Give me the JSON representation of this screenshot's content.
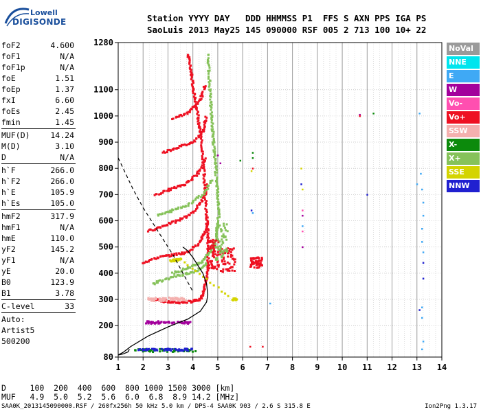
{
  "logo": {
    "line1": "Lowell",
    "line2": "DIGISONDE"
  },
  "header": {
    "line1": "Station YYYY DAY   DDD HHMMSS P1  FFS S AXN PPS IGA PS",
    "line2": "SaoLuis 2013 May25 145 090000 RSF 005 2 713 100 10+ 22"
  },
  "params": [
    {
      "group": [
        {
          "k": "foF2",
          "v": "4.600"
        },
        {
          "k": "foF1",
          "v": "N/A"
        },
        {
          "k": "foF1p",
          "v": "N/A"
        },
        {
          "k": "foE",
          "v": "1.51"
        },
        {
          "k": "foEp",
          "v": "1.37"
        },
        {
          "k": "fxI",
          "v": "6.60"
        },
        {
          "k": "foEs",
          "v": "2.45"
        },
        {
          "k": "fmin",
          "v": "1.45"
        }
      ]
    },
    {
      "group": [
        {
          "k": "MUF(D)",
          "v": "14.24"
        },
        {
          "k": "M(D)",
          "v": "3.10"
        },
        {
          "k": "D",
          "v": "N/A"
        }
      ]
    },
    {
      "group": [
        {
          "k": "h`F",
          "v": "266.0"
        },
        {
          "k": "h`F2",
          "v": "266.0"
        },
        {
          "k": "h`E",
          "v": "105.9"
        },
        {
          "k": "h`Es",
          "v": "105.0"
        }
      ]
    },
    {
      "group": [
        {
          "k": "hmF2",
          "v": "317.9"
        },
        {
          "k": "hmF1",
          "v": "N/A"
        },
        {
          "k": "hmE",
          "v": "110.0"
        },
        {
          "k": "yF2",
          "v": "145.2"
        },
        {
          "k": "yF1",
          "v": "N/A"
        },
        {
          "k": "yE",
          "v": "20.0"
        },
        {
          "k": "B0",
          "v": "123.9"
        },
        {
          "k": "B1",
          "v": "3.78"
        }
      ]
    },
    {
      "group": [
        {
          "k": "C-level",
          "v": "33"
        }
      ]
    },
    {
      "group": [
        {
          "k": "Auto:",
          "v": ""
        },
        {
          "k": "Artist5",
          "v": ""
        },
        {
          "k": "500200",
          "v": ""
        }
      ]
    }
  ],
  "legend": [
    {
      "label": "NoVal",
      "color": "#9a9a9a"
    },
    {
      "label": "NNE",
      "color": "#00e5ee"
    },
    {
      "label": "E",
      "color": "#3fa9f5"
    },
    {
      "label": "W",
      "color": "#a3009c"
    },
    {
      "label": "Vo-",
      "color": "#ff4fb0"
    },
    {
      "label": "Vo+",
      "color": "#ee1122"
    },
    {
      "label": "SSW",
      "color": "#f4b0ae"
    },
    {
      "label": "X-",
      "color": "#0c8a0c"
    },
    {
      "label": "X+",
      "color": "#86c25a"
    },
    {
      "label": "SSE",
      "color": "#d4d400"
    },
    {
      "label": "NNW",
      "color": "#2020d0"
    }
  ],
  "dmuf": {
    "line1": "D     100  200  400  600  800 1000 1500 3000 [km]",
    "line2": "MUF   4.9  5.0  5.2  5.6  6.0  6.8  8.9 14.2 [MHz]"
  },
  "footer": "SAA0K_2013145090000.RSF / 260fx256h 50 kHz 5.0 km / DPS-4 SAA0K 903 / 2.6 S 315.8 E",
  "version": "Ion2Png 1.3.17",
  "chart_data": {
    "type": "scatter",
    "xlim": [
      1,
      14
    ],
    "ylim": [
      80,
      1280
    ],
    "x_ticks": [
      1,
      2,
      3,
      4,
      5,
      6,
      7,
      8,
      9,
      10,
      11,
      12,
      13,
      14
    ],
    "y_ticks": [
      80,
      200,
      300,
      400,
      500,
      600,
      700,
      800,
      900,
      1000,
      1100,
      1280
    ],
    "x_minor_step": 0.25,
    "grid": true,
    "profile_curve": [
      [
        1.45,
        110
      ],
      [
        1.4,
        100
      ],
      [
        1.2,
        92
      ],
      [
        1.0,
        88
      ],
      [
        1.2,
        98
      ],
      [
        1.5,
        120
      ],
      [
        2.2,
        160
      ],
      [
        3.0,
        195
      ],
      [
        3.8,
        225
      ],
      [
        4.3,
        255
      ],
      [
        4.55,
        290
      ],
      [
        4.6,
        318
      ],
      [
        4.55,
        360
      ],
      [
        4.4,
        400
      ],
      [
        4.2,
        430
      ],
      [
        4.0,
        460
      ],
      [
        3.8,
        485
      ],
      [
        3.6,
        500
      ]
    ],
    "dashed_curve": [
      [
        1,
        840
      ],
      [
        1.3,
        780
      ],
      [
        1.6,
        720
      ],
      [
        2.0,
        650
      ],
      [
        2.4,
        590
      ],
      [
        2.8,
        530
      ],
      [
        3.2,
        470
      ],
      [
        3.6,
        400
      ],
      [
        4.0,
        330
      ]
    ],
    "traces": [
      {
        "mode": "Vo+",
        "color": "#ee1122",
        "points": [
          [
            2.5,
            300
          ],
          [
            3.0,
            290
          ],
          [
            3.5,
            288
          ],
          [
            4.0,
            292
          ],
          [
            4.3,
            300
          ],
          [
            4.45,
            330
          ],
          [
            4.55,
            380
          ],
          [
            4.6,
            440
          ],
          [
            4.62,
            500
          ],
          [
            4.6,
            560
          ],
          [
            4.55,
            620
          ],
          [
            4.5,
            700
          ],
          [
            4.45,
            780
          ],
          [
            4.4,
            860
          ],
          [
            4.3,
            940
          ],
          [
            4.2,
            1000
          ],
          [
            4.1,
            1060
          ],
          [
            4.0,
            1120
          ],
          [
            3.9,
            1180
          ],
          [
            3.8,
            1240
          ]
        ]
      },
      {
        "mode": "Vo+",
        "color": "#ee1122",
        "points": [
          [
            2.0,
            440
          ],
          [
            2.6,
            460
          ],
          [
            3.2,
            470
          ],
          [
            3.8,
            480
          ],
          [
            4.3,
            520
          ],
          [
            4.5,
            560
          ],
          [
            4.6,
            600
          ]
        ]
      },
      {
        "mode": "Vo+",
        "color": "#ee1122",
        "points": [
          [
            2.2,
            560
          ],
          [
            2.8,
            580
          ],
          [
            3.4,
            600
          ],
          [
            4.0,
            630
          ],
          [
            4.4,
            680
          ],
          [
            4.6,
            740
          ]
        ]
      },
      {
        "mode": "Vo+",
        "color": "#ee1122",
        "points": [
          [
            2.5,
            700
          ],
          [
            3.1,
            720
          ],
          [
            3.7,
            740
          ],
          [
            4.2,
            780
          ],
          [
            4.5,
            840
          ]
        ]
      },
      {
        "mode": "Vo+",
        "color": "#ee1122",
        "points": [
          [
            2.8,
            860
          ],
          [
            3.4,
            880
          ],
          [
            4.0,
            900
          ],
          [
            4.4,
            940
          ],
          [
            4.55,
            1000
          ]
        ]
      },
      {
        "mode": "Vo+",
        "color": "#ee1122",
        "points": [
          [
            3.2,
            990
          ],
          [
            3.8,
            1010
          ],
          [
            4.3,
            1060
          ],
          [
            4.5,
            1120
          ]
        ]
      },
      {
        "mode": "X+",
        "color": "#86c25a",
        "points": [
          [
            3.2,
            400
          ],
          [
            3.8,
            420
          ],
          [
            4.3,
            440
          ],
          [
            4.7,
            480
          ],
          [
            4.9,
            520
          ],
          [
            5.0,
            580
          ],
          [
            5.05,
            640
          ],
          [
            5.0,
            700
          ],
          [
            4.95,
            760
          ],
          [
            4.9,
            820
          ],
          [
            4.85,
            880
          ],
          [
            4.8,
            940
          ],
          [
            4.75,
            1000
          ],
          [
            4.7,
            1080
          ],
          [
            4.65,
            1160
          ],
          [
            4.6,
            1240
          ]
        ]
      },
      {
        "mode": "X+",
        "color": "#86c25a",
        "points": [
          [
            2.4,
            360
          ],
          [
            3.0,
            380
          ],
          [
            3.6,
            395
          ],
          [
            4.2,
            410
          ],
          [
            4.6,
            440
          ]
        ]
      },
      {
        "mode": "X+",
        "color": "#86c25a",
        "points": [
          [
            2.6,
            620
          ],
          [
            3.2,
            640
          ],
          [
            3.8,
            660
          ],
          [
            4.4,
            700
          ],
          [
            4.8,
            760
          ]
        ]
      },
      {
        "mode": "SSE",
        "color": "#d4d400",
        "points": [
          [
            3.1,
            448
          ],
          [
            3.3,
            450
          ],
          [
            3.5,
            452
          ],
          [
            5.6,
            300
          ],
          [
            5.8,
            300
          ]
        ]
      }
    ],
    "blobs": [
      {
        "mode": "Vo+",
        "color": "#ee1122",
        "cx": 5.4,
        "cy": 450,
        "w": 0.6,
        "h": 90
      },
      {
        "mode": "Vo+",
        "color": "#ee1122",
        "cx": 6.55,
        "cy": 440,
        "w": 0.5,
        "h": 40
      },
      {
        "mode": "Vo+",
        "color": "#ee1122",
        "cx": 4.85,
        "cy": 470,
        "w": 0.4,
        "h": 120
      },
      {
        "mode": "X+",
        "color": "#86c25a",
        "cx": 5.15,
        "cy": 520,
        "w": 0.5,
        "h": 140
      },
      {
        "mode": "SSW",
        "color": "#f4b0ae",
        "cx": 3.0,
        "cy": 300,
        "w": 1.6,
        "h": 14
      },
      {
        "mode": "X-",
        "color": "#0c8a0c",
        "cx": 2.9,
        "cy": 105,
        "w": 2.6,
        "h": 12
      },
      {
        "mode": "NNW",
        "color": "#2020d0",
        "cx": 2.9,
        "cy": 108,
        "w": 2.2,
        "h": 8
      },
      {
        "mode": "W",
        "color": "#a3009c",
        "cx": 3.0,
        "cy": 212,
        "w": 1.8,
        "h": 10
      }
    ],
    "dots": [
      {
        "mode": "E",
        "color": "#3fa9f5",
        "points": [
          [
            13.1,
            1010
          ],
          [
            13.15,
            780
          ],
          [
            13.2,
            720
          ],
          [
            13.25,
            670
          ],
          [
            13.25,
            620
          ],
          [
            13.2,
            570
          ],
          [
            13.2,
            520
          ],
          [
            13.25,
            480
          ],
          [
            13.2,
            270
          ],
          [
            13.2,
            230
          ],
          [
            13.25,
            140
          ],
          [
            13.2,
            110
          ],
          [
            8.4,
            580
          ],
          [
            6.4,
            630
          ],
          [
            7.1,
            285
          ],
          [
            13.0,
            740
          ]
        ]
      },
      {
        "mode": "NNW",
        "color": "#2020d0",
        "points": [
          [
            13.25,
            440
          ],
          [
            13.25,
            380
          ],
          [
            13.1,
            260
          ],
          [
            8.35,
            740
          ],
          [
            6.35,
            640
          ],
          [
            11.0,
            700
          ]
        ]
      },
      {
        "mode": "W",
        "color": "#a3009c",
        "points": [
          [
            5.0,
            850
          ],
          [
            5.1,
            820
          ],
          [
            8.4,
            500
          ],
          [
            8.4,
            620
          ],
          [
            10.7,
            1005
          ]
        ]
      },
      {
        "mode": "X-",
        "color": "#0c8a0c",
        "points": [
          [
            6.4,
            860
          ],
          [
            6.4,
            840
          ],
          [
            11.25,
            1010
          ],
          [
            5.9,
            830
          ]
        ]
      },
      {
        "mode": "Vo+",
        "color": "#ee1122",
        "points": [
          [
            10.7,
            1000
          ],
          [
            6.3,
            120
          ],
          [
            6.8,
            120
          ],
          [
            6.4,
            800
          ]
        ]
      },
      {
        "mode": "SSE",
        "color": "#d4d400",
        "points": [
          [
            8.35,
            800
          ],
          [
            8.4,
            720
          ],
          [
            6.35,
            790
          ]
        ]
      },
      {
        "mode": "Vo-",
        "color": "#ff4fb0",
        "points": [
          [
            8.4,
            560
          ],
          [
            8.4,
            640
          ]
        ]
      }
    ]
  }
}
